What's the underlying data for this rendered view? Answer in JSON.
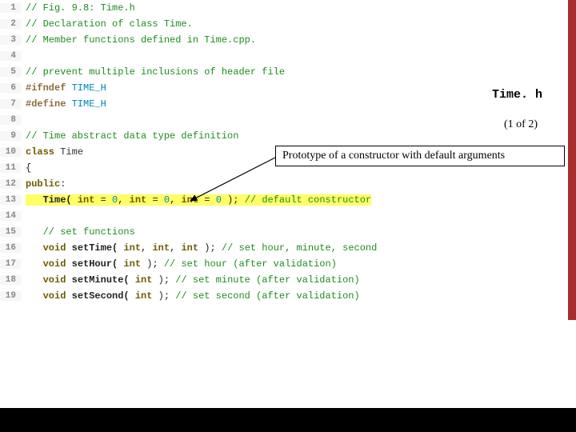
{
  "title": "Time. h",
  "pageIndicator": "(1 of 2)",
  "callout": "Prototype of a constructor with default arguments",
  "lines": [
    {
      "n": 1,
      "tokens": [
        {
          "t": "// Fig. 9.8: Time.h",
          "c": "comment"
        }
      ]
    },
    {
      "n": 2,
      "tokens": [
        {
          "t": "// Declaration of class Time.",
          "c": "comment"
        }
      ]
    },
    {
      "n": 3,
      "tokens": [
        {
          "t": "// Member functions defined in Time.cpp.",
          "c": "comment"
        }
      ]
    },
    {
      "n": 4,
      "tokens": []
    },
    {
      "n": 5,
      "tokens": [
        {
          "t": "// prevent multiple inclusions of header file",
          "c": "comment"
        }
      ]
    },
    {
      "n": 6,
      "tokens": [
        {
          "t": "#ifndef ",
          "c": "kw-preproc"
        },
        {
          "t": "TIME_H",
          "c": "kw-macro"
        }
      ]
    },
    {
      "n": 7,
      "tokens": [
        {
          "t": "#define ",
          "c": "kw-preproc"
        },
        {
          "t": "TIME_H",
          "c": "kw-macro"
        }
      ]
    },
    {
      "n": 8,
      "tokens": []
    },
    {
      "n": 9,
      "tokens": [
        {
          "t": "// Time abstract data type definition",
          "c": "comment"
        }
      ]
    },
    {
      "n": 10,
      "tokens": [
        {
          "t": "class ",
          "c": "kw"
        },
        {
          "t": "Time",
          "c": "classname"
        }
      ]
    },
    {
      "n": 11,
      "tokens": [
        {
          "t": "{",
          "c": "punct"
        }
      ]
    },
    {
      "n": 12,
      "tokens": [
        {
          "t": "public",
          "c": "kw"
        },
        {
          "t": ":",
          "c": "punct"
        }
      ]
    },
    {
      "n": 13,
      "hl": true,
      "tokens": [
        {
          "t": "   "
        },
        {
          "t": "Time( ",
          "c": "ident"
        },
        {
          "t": "int",
          "c": "type"
        },
        {
          "t": " = ",
          "c": "punct"
        },
        {
          "t": "0",
          "c": "num"
        },
        {
          "t": ", ",
          "c": "punct"
        },
        {
          "t": "int",
          "c": "type"
        },
        {
          "t": " = ",
          "c": "punct"
        },
        {
          "t": "0",
          "c": "num"
        },
        {
          "t": ", ",
          "c": "punct"
        },
        {
          "t": "int",
          "c": "type"
        },
        {
          "t": " = ",
          "c": "punct"
        },
        {
          "t": "0",
          "c": "num"
        },
        {
          "t": " ); ",
          "c": "punct"
        },
        {
          "t": "// default constructor",
          "c": "comment"
        }
      ]
    },
    {
      "n": 14,
      "tokens": []
    },
    {
      "n": 15,
      "tokens": [
        {
          "t": "   "
        },
        {
          "t": "// set functions",
          "c": "comment"
        }
      ]
    },
    {
      "n": 16,
      "tokens": [
        {
          "t": "   "
        },
        {
          "t": "void ",
          "c": "type"
        },
        {
          "t": "setTime( ",
          "c": "ident"
        },
        {
          "t": "int",
          "c": "type"
        },
        {
          "t": ", ",
          "c": "punct"
        },
        {
          "t": "int",
          "c": "type"
        },
        {
          "t": ", ",
          "c": "punct"
        },
        {
          "t": "int",
          "c": "type"
        },
        {
          "t": " ); ",
          "c": "punct"
        },
        {
          "t": "// set hour, minute, second",
          "c": "comment"
        }
      ]
    },
    {
      "n": 17,
      "tokens": [
        {
          "t": "   "
        },
        {
          "t": "void ",
          "c": "type"
        },
        {
          "t": "setHour( ",
          "c": "ident"
        },
        {
          "t": "int",
          "c": "type"
        },
        {
          "t": " ); ",
          "c": "punct"
        },
        {
          "t": "// set hour (after validation)",
          "c": "comment"
        }
      ]
    },
    {
      "n": 18,
      "tokens": [
        {
          "t": "   "
        },
        {
          "t": "void ",
          "c": "type"
        },
        {
          "t": "setMinute( ",
          "c": "ident"
        },
        {
          "t": "int",
          "c": "type"
        },
        {
          "t": " ); ",
          "c": "punct"
        },
        {
          "t": "// set minute (after validation)",
          "c": "comment"
        }
      ]
    },
    {
      "n": 19,
      "tokens": [
        {
          "t": "   "
        },
        {
          "t": "void ",
          "c": "type"
        },
        {
          "t": "setSecond( ",
          "c": "ident"
        },
        {
          "t": "int",
          "c": "type"
        },
        {
          "t": " ); ",
          "c": "punct"
        },
        {
          "t": "// set second (after validation)",
          "c": "comment"
        }
      ]
    }
  ]
}
